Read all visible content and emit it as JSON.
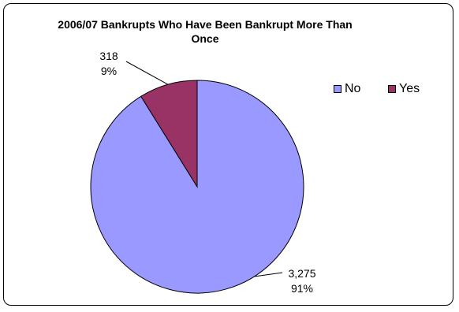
{
  "chart_data": {
    "type": "pie",
    "title": "2006/07 Bankrupts Who Have Been Bankrupt More Than Once",
    "categories": [
      "No",
      "Yes"
    ],
    "values": [
      3275,
      318
    ],
    "value_labels": [
      "3,275",
      "318"
    ],
    "percent_labels": [
      "91%",
      "9%"
    ],
    "colors": [
      "#9999ff",
      "#993366"
    ],
    "legend": {
      "position": "right",
      "entries": [
        "No",
        "Yes"
      ]
    }
  }
}
